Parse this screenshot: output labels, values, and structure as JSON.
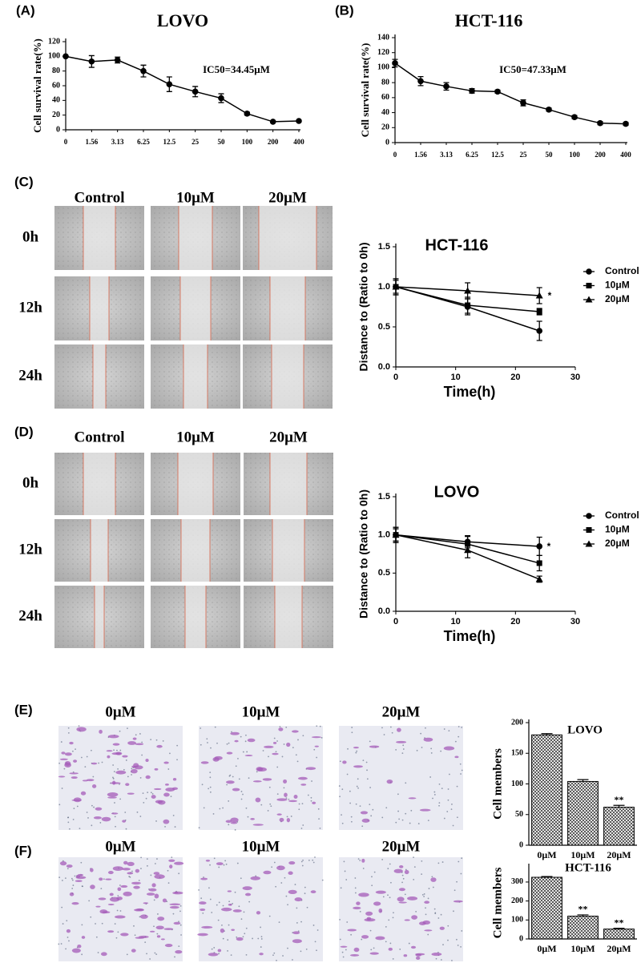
{
  "panel_labels": [
    "(A)",
    "(B)",
    "(C)",
    "(D)",
    "(E)",
    "(F)"
  ],
  "image_grids": [
    {
      "columns": [
        "Control",
        "10μM",
        "20μM"
      ],
      "rows": [
        "0h",
        "12h",
        "24h"
      ]
    },
    {
      "columns": [
        "Control",
        "10μM",
        "20μM"
      ],
      "rows": [
        "0h",
        "12h",
        "24h"
      ]
    },
    {
      "columns": [
        "0μM",
        "10μM",
        "20μM"
      ]
    },
    {
      "columns": [
        "0μM",
        "10μM",
        "20μM"
      ]
    }
  ],
  "chart_data": [
    {
      "type": "line",
      "title": "LOVO",
      "y_label": "Cell survival rate(%)",
      "annotations": [
        "IC50=34.45μM"
      ],
      "categories": [
        "0",
        "1.56",
        "3.13",
        "6.25",
        "12.5",
        "25",
        "50",
        "100",
        "200",
        "400"
      ],
      "values": [
        100,
        93,
        95,
        80,
        62,
        52,
        43,
        22,
        11,
        12
      ],
      "errors": [
        0,
        8,
        4,
        8,
        10,
        7,
        6,
        2,
        1,
        1
      ],
      "color": "#000000",
      "ylim": [
        0,
        120
      ],
      "yticks": [
        0,
        20,
        40,
        60,
        80,
        100,
        120
      ]
    },
    {
      "type": "line",
      "title": "HCT-116",
      "y_label": "Cell survival rate(%)",
      "annotations": [
        "IC50=47.33μM"
      ],
      "categories": [
        "0",
        "1.56",
        "3.13",
        "6.25",
        "12.5",
        "25",
        "50",
        "100",
        "200",
        "400"
      ],
      "values": [
        106,
        82,
        75,
        69,
        68,
        53,
        44,
        34,
        26,
        25
      ],
      "errors": [
        5,
        6,
        5,
        3,
        2,
        4,
        2,
        2,
        2,
        2
      ],
      "color": "#000000",
      "ylim": [
        0,
        140
      ],
      "yticks": [
        0,
        20,
        40,
        60,
        80,
        100,
        120,
        140
      ]
    },
    {
      "type": "line",
      "title": "HCT-116",
      "x_label": "Time(h)",
      "y_label": "Distance to (Ratio to 0h)",
      "annotations": [
        "*"
      ],
      "x": [
        0,
        12,
        24
      ],
      "xlim": [
        0,
        30
      ],
      "xticks": [
        0,
        10,
        20,
        30
      ],
      "ylim": [
        0,
        1.5
      ],
      "yticks": [
        {
          "value": 0,
          "label": "0.0"
        },
        0.5,
        {
          "value": 1,
          "label": "1.0"
        },
        1.5
      ],
      "series": [
        {
          "name": "Control",
          "color": "#000000",
          "marker": "circle",
          "values": [
            1,
            0.75,
            0.45
          ],
          "errors": [
            0.1,
            0.1,
            0.12
          ]
        },
        {
          "name": "10μM",
          "color": "#000000",
          "marker": "square",
          "values": [
            1,
            0.77,
            0.69
          ],
          "errors": [
            0.08,
            0.1,
            0.04
          ]
        },
        {
          "name": "20μM",
          "color": "#000000",
          "marker": "triangle",
          "values": [
            1,
            0.95,
            0.89
          ],
          "errors": [
            0.1,
            0.1,
            0.1
          ]
        }
      ]
    },
    {
      "type": "line",
      "title": "LOVO",
      "x_label": "Time(h)",
      "y_label": "Distance to (Ratio to 0h)",
      "annotations": [
        "*"
      ],
      "x": [
        0,
        12,
        24
      ],
      "xlim": [
        0,
        30
      ],
      "xticks": [
        0,
        10,
        20,
        30
      ],
      "ylim": [
        0,
        1.5
      ],
      "yticks": [
        {
          "value": 0,
          "label": "0.0"
        },
        0.5,
        {
          "value": 1,
          "label": "1.0"
        },
        1.5
      ],
      "series": [
        {
          "name": "Control",
          "color": "#000000",
          "marker": "circle",
          "values": [
            1,
            0.91,
            0.85
          ],
          "errors": [
            0.1,
            0.08,
            0.12
          ]
        },
        {
          "name": "10μM",
          "color": "#000000",
          "marker": "square",
          "values": [
            1,
            0.88,
            0.63
          ],
          "errors": [
            0.08,
            0.1,
            0.1
          ]
        },
        {
          "name": "20μM",
          "color": "#000000",
          "marker": "triangle",
          "values": [
            1,
            0.8,
            0.42
          ],
          "errors": [
            0.1,
            0.1,
            0.04
          ]
        }
      ]
    },
    {
      "type": "bar",
      "title": "LOVO",
      "y_label": "Cell members",
      "annotations": [
        "**"
      ],
      "categories": [
        "0μM",
        "10μM",
        "20μM"
      ],
      "values": [
        180,
        104,
        62
      ],
      "errors": [
        2,
        3,
        3
      ],
      "color": "#000000",
      "ylim": [
        0,
        200
      ],
      "yticks": [
        0,
        50,
        100,
        150,
        200
      ]
    },
    {
      "type": "bar",
      "title": "HCT-116",
      "y_label": "Cell members",
      "annotations": [
        "**",
        "**"
      ],
      "categories": [
        "0μM",
        "10μM",
        "20μM"
      ],
      "values": [
        325,
        120,
        52
      ],
      "errors": [
        4,
        7,
        4
      ],
      "color": "#000000",
      "ylim": [
        0,
        380
      ],
      "yticks": [
        0,
        100,
        200,
        300
      ]
    }
  ]
}
